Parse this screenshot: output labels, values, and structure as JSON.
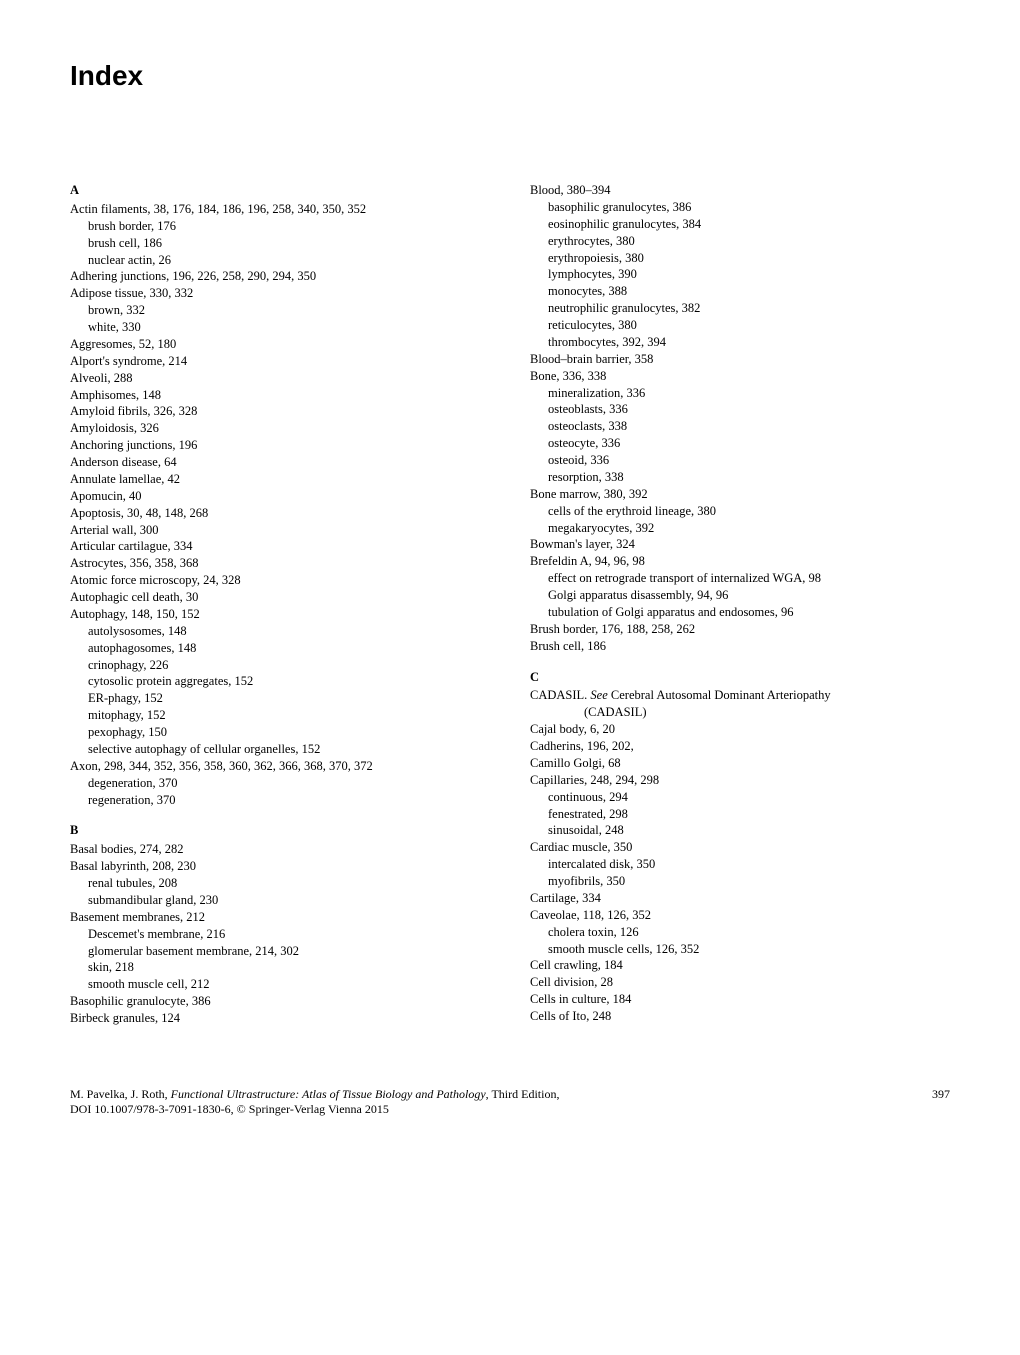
{
  "title": "Index",
  "left": {
    "sections": [
      {
        "letter": "A",
        "entries": [
          {
            "text": "Actin filaments, 38, 176, 184, 186, 196, 258, 340, 350, 352",
            "subs": [
              {
                "text": "brush border, 176"
              },
              {
                "text": "brush cell, 186"
              },
              {
                "text": "nuclear actin, 26"
              }
            ]
          },
          {
            "text": "Adhering junctions, 196, 226, 258, 290, 294, 350"
          },
          {
            "text": "Adipose tissue, 330, 332",
            "subs": [
              {
                "text": "brown, 332"
              },
              {
                "text": "white, 330"
              }
            ]
          },
          {
            "text": "Aggresomes, 52, 180"
          },
          {
            "text": "Alport's syndrome, 214"
          },
          {
            "text": "Alveoli, 288"
          },
          {
            "text": "Amphisomes, 148"
          },
          {
            "text": "Amyloid fibrils, 326, 328"
          },
          {
            "text": "Amyloidosis, 326"
          },
          {
            "text": "Anchoring junctions, 196"
          },
          {
            "text": "Anderson disease, 64"
          },
          {
            "text": "Annulate lamellae, 42"
          },
          {
            "text": "Apomucin, 40"
          },
          {
            "text": "Apoptosis, 30, 48, 148, 268"
          },
          {
            "text": "Arterial wall, 300"
          },
          {
            "text": "Articular cartilague, 334"
          },
          {
            "text": "Astrocytes, 356, 358, 368"
          },
          {
            "text": "Atomic force microscopy, 24, 328"
          },
          {
            "text": "Autophagic cell death, 30"
          },
          {
            "text": "Autophagy, 148, 150, 152",
            "subs": [
              {
                "text": "autolysosomes, 148"
              },
              {
                "text": "autophagosomes, 148"
              },
              {
                "text": "crinophagy, 226"
              },
              {
                "text": "cytosolic protein aggregates, 152"
              },
              {
                "text": "ER-phagy, 152"
              },
              {
                "text": "mitophagy, 152"
              },
              {
                "text": "pexophagy, 150"
              },
              {
                "text": "selective autophagy of cellular organelles, 152"
              }
            ]
          },
          {
            "text": "Axon, 298, 344, 352, 356, 358, 360, 362, 366, 368, 370, 372",
            "subs": [
              {
                "text": "degeneration, 370"
              },
              {
                "text": "regeneration, 370"
              }
            ]
          }
        ]
      },
      {
        "letter": "B",
        "entries": [
          {
            "text": "Basal bodies, 274, 282"
          },
          {
            "text": "Basal labyrinth, 208, 230",
            "subs": [
              {
                "text": "renal tubules, 208"
              },
              {
                "text": "submandibular gland, 230"
              }
            ]
          },
          {
            "text": "Basement membranes, 212",
            "subs": [
              {
                "text": "Descemet's membrane, 216"
              },
              {
                "text": "glomerular basement membrane, 214, 302"
              },
              {
                "text": "skin, 218"
              },
              {
                "text": "smooth muscle cell, 212"
              }
            ]
          },
          {
            "text": "Basophilic granulocyte, 386"
          },
          {
            "text": "Birbeck granules, 124"
          }
        ]
      }
    ]
  },
  "right": {
    "sections": [
      {
        "letter": "",
        "entries": [
          {
            "text": "Blood, 380–394",
            "subs": [
              {
                "text": "basophilic granulocytes, 386"
              },
              {
                "text": "eosinophilic granulocytes, 384"
              },
              {
                "text": "erythrocytes, 380"
              },
              {
                "text": "erythropoiesis, 380"
              },
              {
                "text": "lymphocytes, 390"
              },
              {
                "text": "monocytes, 388"
              },
              {
                "text": "neutrophilic granulocytes, 382"
              },
              {
                "text": "reticulocytes, 380"
              },
              {
                "text": "thrombocytes, 392, 394"
              }
            ]
          },
          {
            "text": "Blood–brain barrier, 358"
          },
          {
            "text": "Bone, 336, 338",
            "subs": [
              {
                "text": "mineralization, 336"
              },
              {
                "text": "osteoblasts, 336"
              },
              {
                "text": "osteoclasts, 338"
              },
              {
                "text": "osteocyte, 336"
              },
              {
                "text": "osteoid, 336"
              },
              {
                "text": "resorption, 338"
              }
            ]
          },
          {
            "text": "Bone marrow, 380, 392",
            "subs": [
              {
                "text": "cells of the erythroid lineage, 380"
              },
              {
                "text": "megakaryocytes, 392"
              }
            ]
          },
          {
            "text": "Bowman's layer, 324"
          },
          {
            "text": "Brefeldin A, 94, 96, 98",
            "subs": [
              {
                "text": "effect on retrograde transport of internalized WGA, 98"
              },
              {
                "text": "Golgi apparatus disassembly, 94, 96"
              },
              {
                "text": "tubulation of Golgi apparatus and endosomes, 96"
              }
            ]
          },
          {
            "text": "Brush border, 176, 188, 258, 262"
          },
          {
            "text": "Brush cell, 186"
          }
        ]
      },
      {
        "letter": "C",
        "entries": [
          {
            "text": "CADASIL. See Cerebral Autosomal Dominant Arteriopathy",
            "italicSee": true,
            "subsub": "(CADASIL)"
          },
          {
            "text": "Cajal body, 6, 20"
          },
          {
            "text": "Cadherins, 196, 202,"
          },
          {
            "text": "Camillo Golgi, 68"
          },
          {
            "text": "Capillaries, 248, 294, 298",
            "subs": [
              {
                "text": "continuous, 294"
              },
              {
                "text": "fenestrated, 298"
              },
              {
                "text": "sinusoidal, 248"
              }
            ]
          },
          {
            "text": "Cardiac muscle, 350",
            "subs": [
              {
                "text": "intercalated disk, 350"
              },
              {
                "text": "myofibrils, 350"
              }
            ]
          },
          {
            "text": "Cartilage, 334"
          },
          {
            "text": "Caveolae, 118, 126, 352",
            "subs": [
              {
                "text": "cholera toxin, 126"
              },
              {
                "text": "smooth muscle cells, 126, 352"
              }
            ]
          },
          {
            "text": "Cell crawling, 184"
          },
          {
            "text": "Cell division, 28"
          },
          {
            "text": "Cells in culture, 184"
          },
          {
            "text": "Cells of Ito, 248"
          }
        ]
      }
    ]
  },
  "footer": {
    "authors": "M. Pavelka, J. Roth, ",
    "bookTitle": "Functional Ultrastructure: Atlas of Tissue Biology and Pathology",
    "edition": ", Third Edition,",
    "doi": "DOI 10.1007/978-3-7091-1830-6, © Springer-Verlag Vienna 2015",
    "page": "397"
  }
}
